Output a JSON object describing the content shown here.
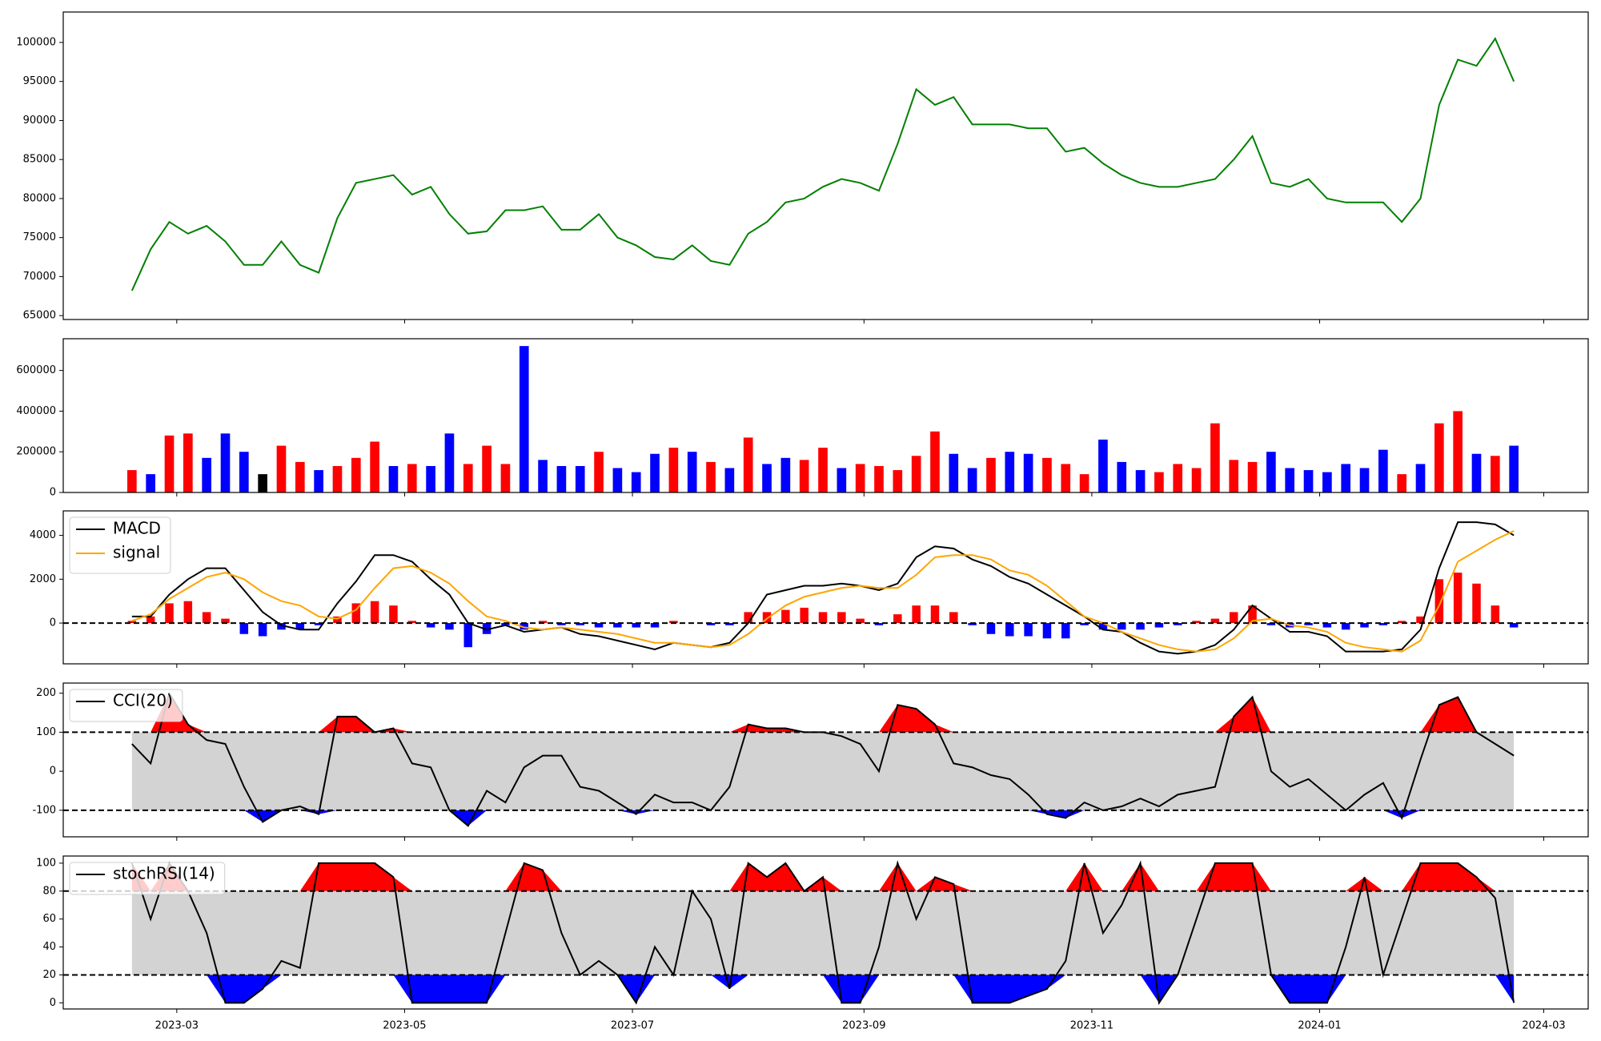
{
  "chart_data": [
    {
      "type": "line",
      "x": [
        -12,
        -7,
        -2,
        3,
        8,
        13,
        18,
        23,
        28,
        33,
        38,
        43,
        48,
        53,
        58,
        63,
        68,
        73,
        78,
        83,
        88,
        93,
        98,
        103,
        108,
        113,
        118,
        123,
        128,
        133,
        138,
        143,
        148,
        153,
        158,
        163,
        168,
        173,
        178,
        183,
        188,
        193,
        198,
        203,
        208,
        213,
        218,
        223,
        228,
        233,
        238,
        243,
        248,
        253,
        258,
        263,
        268,
        273,
        278,
        283,
        288,
        293,
        298,
        303,
        308,
        313,
        318,
        323,
        328,
        333,
        338,
        343,
        348,
        353,
        358
      ],
      "xlim": [
        -30.4,
        377.9
      ],
      "series": [
        {
          "color": "#008000",
          "values": [
            68200,
            73500,
            77000,
            75500,
            76500,
            74500,
            71500,
            71500,
            74500,
            71500,
            70500,
            77500,
            82000,
            82500,
            83000,
            80500,
            81500,
            78000,
            75500,
            75800,
            78500,
            78500,
            79000,
            76000,
            76000,
            78000,
            75000,
            74000,
            72500,
            72200,
            74000,
            72000,
            71500,
            75500,
            77000,
            79500,
            80000,
            81500,
            82500,
            82000,
            81000,
            87000,
            94000,
            92000,
            93000,
            89500,
            89500,
            89500,
            89000,
            89000,
            86000,
            86500,
            84500,
            83000,
            82000,
            81500,
            81500,
            82000,
            82500,
            85000,
            88000,
            82000,
            81500,
            82500,
            80000,
            79500,
            79500,
            79500,
            77000,
            80000,
            92000,
            97800,
            97000,
            100500,
            95000
          ]
        }
      ],
      "ylim": [
        64500,
        103900
      ],
      "yticks": [
        65000,
        70000,
        75000,
        80000,
        85000,
        90000,
        95000,
        100000
      ]
    },
    {
      "type": "bar",
      "x": [
        -12,
        -7,
        -2,
        3,
        8,
        13,
        18,
        23,
        28,
        33,
        38,
        43,
        48,
        53,
        58,
        63,
        68,
        73,
        78,
        83,
        88,
        93,
        98,
        103,
        108,
        113,
        118,
        123,
        128,
        133,
        138,
        143,
        148,
        153,
        158,
        163,
        168,
        173,
        178,
        183,
        188,
        193,
        198,
        203,
        208,
        213,
        218,
        223,
        228,
        233,
        238,
        243,
        248,
        253,
        258,
        263,
        268,
        273,
        278,
        283,
        288,
        293,
        298,
        303,
        308,
        313,
        318,
        323,
        328,
        333,
        338,
        343,
        348,
        353,
        358
      ],
      "xlim": [
        -30.4,
        377.9
      ],
      "values": [
        110000,
        90000,
        280000,
        290000,
        170000,
        290000,
        200000,
        90000,
        230000,
        150000,
        110000,
        130000,
        170000,
        250000,
        130000,
        140000,
        130000,
        290000,
        140000,
        230000,
        140000,
        720000,
        160000,
        130000,
        130000,
        200000,
        120000,
        100000,
        190000,
        220000,
        200000,
        150000,
        120000,
        270000,
        140000,
        170000,
        160000,
        220000,
        120000,
        140000,
        130000,
        110000,
        180000,
        300000,
        190000,
        120000,
        170000,
        200000,
        190000,
        170000,
        140000,
        90000,
        260000,
        150000,
        110000,
        100000,
        140000,
        120000,
        340000,
        160000,
        150000,
        200000,
        120000,
        110000,
        100000,
        140000,
        120000,
        210000,
        90000,
        140000,
        340000,
        400000,
        190000,
        180000,
        230000
      ],
      "colors": [
        "red",
        "blue",
        "red",
        "red",
        "blue",
        "blue",
        "blue",
        "black",
        "red",
        "red",
        "blue",
        "red",
        "red",
        "red",
        "blue",
        "red",
        "blue",
        "blue",
        "red",
        "red",
        "red",
        "blue",
        "blue",
        "blue",
        "blue",
        "red",
        "blue",
        "blue",
        "blue",
        "red",
        "blue",
        "red",
        "blue",
        "red",
        "blue",
        "blue",
        "red",
        "red",
        "blue",
        "red",
        "red",
        "red",
        "red",
        "red",
        "blue",
        "blue",
        "red",
        "blue",
        "blue",
        "red",
        "red",
        "red",
        "blue",
        "blue",
        "blue",
        "red",
        "red",
        "red",
        "red",
        "red",
        "red",
        "blue",
        "blue",
        "blue",
        "blue",
        "blue",
        "blue",
        "blue",
        "red",
        "blue",
        "red",
        "red",
        "blue",
        "red",
        "blue"
      ],
      "ylim": [
        0,
        756000
      ],
      "yticks": [
        0,
        200000,
        400000,
        600000
      ]
    },
    {
      "type": "line",
      "x": [
        -12,
        -7,
        -2,
        3,
        8,
        13,
        18,
        23,
        28,
        33,
        38,
        43,
        48,
        53,
        58,
        63,
        68,
        73,
        78,
        83,
        88,
        93,
        98,
        103,
        108,
        113,
        118,
        123,
        128,
        133,
        138,
        143,
        148,
        153,
        158,
        163,
        168,
        173,
        178,
        183,
        188,
        193,
        198,
        203,
        208,
        213,
        218,
        223,
        228,
        233,
        238,
        243,
        248,
        253,
        258,
        263,
        268,
        273,
        278,
        283,
        288,
        293,
        298,
        303,
        308,
        313,
        318,
        323,
        328,
        333,
        338,
        343,
        348,
        353,
        358
      ],
      "xlim": [
        -30.4,
        377.9
      ],
      "series": [
        {
          "name": "MACD",
          "color": "#000000",
          "values": [
            300,
            300,
            1300,
            2000,
            2500,
            2500,
            1500,
            500,
            -100,
            -300,
            -300,
            900,
            1900,
            3100,
            3100,
            2800,
            2000,
            1300,
            0,
            -300,
            -100,
            -400,
            -300,
            -200,
            -500,
            -600,
            -800,
            -1000,
            -1200,
            -900,
            -1000,
            -1100,
            -900,
            0,
            1300,
            1500,
            1700,
            1700,
            1800,
            1700,
            1500,
            1800,
            3000,
            3500,
            3400,
            2900,
            2600,
            2100,
            1800,
            1300,
            800,
            300,
            -300,
            -400,
            -900,
            -1300,
            -1400,
            -1300,
            -1000,
            -300,
            800,
            200,
            -400,
            -400,
            -600,
            -1300,
            -1300,
            -1300,
            -1200,
            -300,
            2500,
            4600,
            4600,
            4500,
            4000
          ]
        },
        {
          "name": "signal",
          "color": "#ffa500",
          "values": [
            100,
            400,
            1100,
            1600,
            2100,
            2300,
            2000,
            1400,
            1000,
            800,
            300,
            200,
            600,
            1600,
            2500,
            2600,
            2300,
            1800,
            1000,
            300,
            100,
            -200,
            -300,
            -200,
            -300,
            -400,
            -500,
            -700,
            -900,
            -900,
            -1000,
            -1100,
            -1000,
            -500,
            200,
            800,
            1200,
            1400,
            1600,
            1700,
            1600,
            1600,
            2200,
            3000,
            3100,
            3100,
            2900,
            2400,
            2200,
            1700,
            1000,
            300,
            0,
            -400,
            -700,
            -1000,
            -1200,
            -1300,
            -1200,
            -700,
            100,
            200,
            -100,
            -200,
            -400,
            -900,
            -1100,
            -1200,
            -1300,
            -800,
            800,
            2800,
            3300,
            3800,
            4200
          ]
        }
      ],
      "histogram": {
        "up_color": "red",
        "down_color": "blue",
        "values": [
          100,
          300,
          900,
          1000,
          500,
          200,
          -500,
          -600,
          -300,
          -300,
          -100,
          300,
          900,
          1000,
          800,
          100,
          -200,
          -300,
          -1100,
          -500,
          -100,
          -300,
          100,
          -100,
          -100,
          -200,
          -200,
          -200,
          -200,
          100,
          0,
          -100,
          -100,
          500,
          500,
          600,
          700,
          500,
          500,
          200,
          -100,
          400,
          800,
          800,
          500,
          -100,
          -500,
          -600,
          -600,
          -700,
          -700,
          -100,
          -300,
          -300,
          -300,
          -200,
          -100,
          100,
          200,
          500,
          800,
          -100,
          -200,
          -100,
          -200,
          -300,
          -200,
          -100,
          100,
          300,
          2000,
          2300,
          1800,
          800,
          -200
        ]
      },
      "hline": 0,
      "ylim": [
        -1860,
        5116
      ],
      "yticks": [
        0,
        2000,
        4000
      ],
      "legend": "upper left"
    },
    {
      "type": "line",
      "x": [
        -12,
        -7,
        -2,
        3,
        8,
        13,
        18,
        23,
        28,
        33,
        38,
        43,
        48,
        53,
        58,
        63,
        68,
        73,
        78,
        83,
        88,
        93,
        98,
        103,
        108,
        113,
        118,
        123,
        128,
        133,
        138,
        143,
        148,
        153,
        158,
        163,
        168,
        173,
        178,
        183,
        188,
        193,
        198,
        203,
        208,
        213,
        218,
        223,
        228,
        233,
        238,
        243,
        248,
        253,
        258,
        263,
        268,
        273,
        278,
        283,
        288,
        293,
        298,
        303,
        308,
        313,
        318,
        323,
        328,
        333,
        338,
        343,
        348,
        353,
        358
      ],
      "xlim": [
        -30.4,
        377.9
      ],
      "series": [
        {
          "name": "CCI(20)",
          "color": "#000000",
          "values": [
            70,
            20,
            200,
            120,
            80,
            70,
            -40,
            -130,
            -100,
            -90,
            -110,
            140,
            140,
            100,
            110,
            20,
            10,
            -100,
            -140,
            -50,
            -80,
            10,
            40,
            40,
            -40,
            -50,
            -80,
            -110,
            -60,
            -80,
            -80,
            -100,
            -40,
            120,
            110,
            110,
            100,
            100,
            90,
            70,
            0,
            170,
            160,
            120,
            20,
            10,
            -10,
            -20,
            -60,
            -110,
            -120,
            -80,
            -100,
            -90,
            -70,
            -90,
            -60,
            -50,
            -40,
            140,
            190,
            0,
            -40,
            -20,
            -60,
            -100,
            -60,
            -30,
            -120,
            30,
            170,
            190,
            100,
            70,
            40
          ]
        }
      ],
      "upper": 100,
      "lower": -100,
      "band_color": "#d3d3d3",
      "upper_fill": "red",
      "lower_fill": "blue",
      "ylim": [
        -168,
        226
      ],
      "yticks": [
        -100,
        0,
        100,
        200
      ],
      "legend": "upper left"
    },
    {
      "type": "line",
      "x": [
        -12,
        -7,
        -2,
        3,
        8,
        13,
        18,
        23,
        28,
        33,
        38,
        43,
        48,
        53,
        58,
        63,
        68,
        73,
        78,
        83,
        88,
        93,
        98,
        103,
        108,
        113,
        118,
        123,
        128,
        133,
        138,
        143,
        148,
        153,
        158,
        163,
        168,
        173,
        178,
        183,
        188,
        193,
        198,
        203,
        208,
        213,
        218,
        223,
        228,
        233,
        238,
        243,
        248,
        253,
        258,
        263,
        268,
        273,
        278,
        283,
        288,
        293,
        298,
        303,
        308,
        313,
        318,
        323,
        328,
        333,
        338,
        343,
        348,
        353,
        358
      ],
      "xlim": [
        -30.4,
        377.9
      ],
      "series": [
        {
          "name": "stochRSI(14)",
          "color": "#000000",
          "values": [
            100,
            60,
            100,
            80,
            50,
            0,
            0,
            10,
            30,
            25,
            100,
            100,
            100,
            100,
            90,
            0,
            0,
            0,
            0,
            0,
            50,
            100,
            95,
            50,
            20,
            30,
            20,
            0,
            40,
            20,
            80,
            60,
            10,
            100,
            90,
            100,
            80,
            90,
            0,
            0,
            40,
            100,
            60,
            90,
            85,
            0,
            0,
            0,
            5,
            10,
            30,
            100,
            50,
            70,
            100,
            0,
            20,
            60,
            100,
            100,
            100,
            20,
            0,
            0,
            0,
            40,
            90,
            20,
            60,
            100,
            100,
            100,
            90,
            75,
            0
          ]
        }
      ],
      "upper": 80,
      "lower": 20,
      "band_color": "#d3d3d3",
      "upper_fill": "red",
      "lower_fill": "blue",
      "ylim": [
        -4.4,
        105.1
      ],
      "yticks": [
        0,
        20,
        40,
        60,
        80,
        100
      ],
      "xticks": [
        {
          "value": 0,
          "label": "2023-03"
        },
        {
          "value": 61,
          "label": "2023-05"
        },
        {
          "value": 122,
          "label": "2023-07"
        },
        {
          "value": 184,
          "label": "2023-09"
        },
        {
          "value": 245,
          "label": "2023-11"
        },
        {
          "value": 306,
          "label": "2024-01"
        },
        {
          "value": 366,
          "label": "2024-03"
        }
      ],
      "legend": "upper left"
    }
  ]
}
